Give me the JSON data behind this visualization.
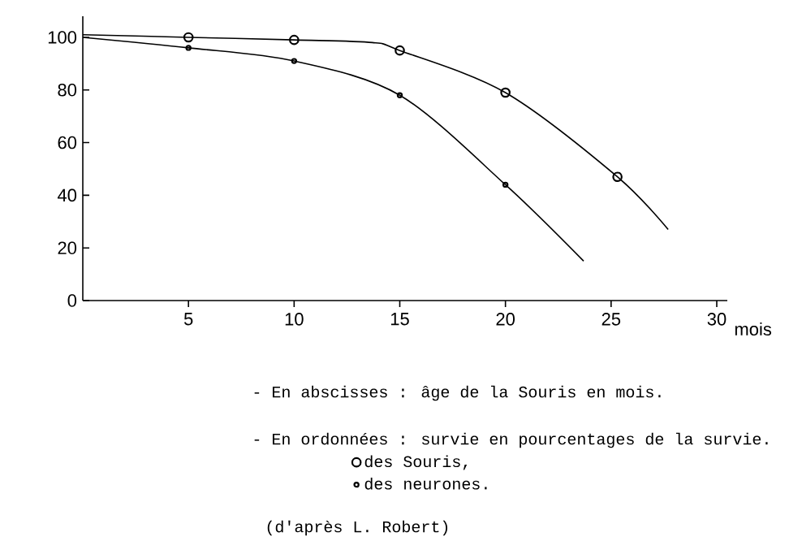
{
  "chart_data": {
    "type": "line",
    "xlabel": "mois",
    "xlim": [
      0,
      30.5
    ],
    "ylim": [
      0,
      108
    ],
    "xticks": [
      5,
      10,
      15,
      20,
      25,
      30
    ],
    "yticks": [
      0,
      20,
      40,
      60,
      80,
      100
    ],
    "grid": false,
    "legend": "bottom",
    "line_style": "solid",
    "series": [
      {
        "color": "#000000",
        "x": [
          0,
          5,
          10,
          13.7,
          15,
          20,
          25.3,
          27.7
        ],
        "values": [
          101,
          100,
          99,
          98,
          95,
          79,
          47,
          27
        ],
        "marker": "none"
      },
      {
        "color": "#000000",
        "x": [
          0,
          5,
          10,
          15,
          20,
          23.7
        ],
        "values": [
          100,
          96,
          91,
          78,
          44,
          15
        ],
        "marker": "none"
      },
      {
        "type": "scatter",
        "name": "des Souris,",
        "color": "#000000",
        "x": [
          5,
          10,
          15,
          20,
          25.3
        ],
        "values": [
          100,
          99,
          95,
          79,
          47
        ],
        "marker": "circle"
      },
      {
        "type": "scatter",
        "name": "des neurones.",
        "color": "#000000",
        "x": [
          5,
          10,
          15,
          20
        ],
        "values": [
          96,
          91,
          78,
          44
        ],
        "marker": "circle"
      }
    ],
    "annotations": [
      "- En abscisses : âge de la Souris en mois.",
      "- En ordonnées : survie en pourcentages de la survie.",
      "(d'après L. Robert)"
    ]
  }
}
